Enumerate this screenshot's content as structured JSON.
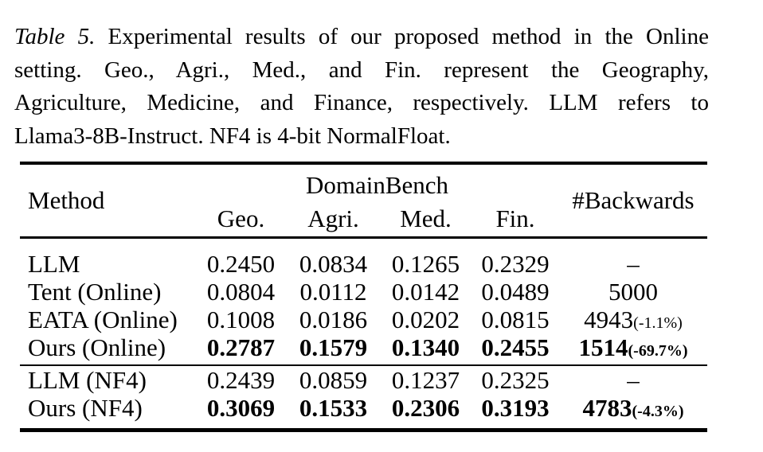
{
  "caption": {
    "label": "Table 5.",
    "lines": [
      "Experimental results of our proposed method in the Online",
      "setting. Geo., Agri., Med., and Fin. represent the Geography,",
      "Agriculture, Medicine, and Finance, respectively. LLM refers to",
      "Llama3-8B-Instruct. NF4 is 4-bit NormalFloat."
    ]
  },
  "table": {
    "col_method": "Method",
    "group_header": "DomainBench",
    "col_backwards": "#Backwards",
    "subcols": [
      "Geo.",
      "Agri.",
      "Med.",
      "Fin."
    ],
    "rows": [
      {
        "method": "LLM",
        "values": [
          "0.2450",
          "0.0834",
          "0.1265",
          "0.2329"
        ],
        "backwards": "–",
        "backwards_pct": ""
      },
      {
        "method": "Tent (Online)",
        "values": [
          "0.0804",
          "0.0112",
          "0.0142",
          "0.0489"
        ],
        "backwards": "5000",
        "backwards_pct": ""
      },
      {
        "method": "EATA (Online)",
        "values": [
          "0.1008",
          "0.0186",
          "0.0202",
          "0.0815"
        ],
        "backwards": "4943",
        "backwards_pct": "(-1.1%)"
      },
      {
        "method": "Ours (Online)",
        "values": [
          "0.2787",
          "0.1579",
          "0.1340",
          "0.2455"
        ],
        "backwards": "1514",
        "backwards_pct": "(-69.7%)"
      },
      {
        "method": "LLM (NF4)",
        "values": [
          "0.2439",
          "0.0859",
          "0.1237",
          "0.2325"
        ],
        "backwards": "–",
        "backwards_pct": ""
      },
      {
        "method": "Ours (NF4)",
        "values": [
          "0.3069",
          "0.1533",
          "0.2306",
          "0.3193"
        ],
        "backwards": "4783",
        "backwards_pct": "(-4.3%)"
      }
    ]
  }
}
